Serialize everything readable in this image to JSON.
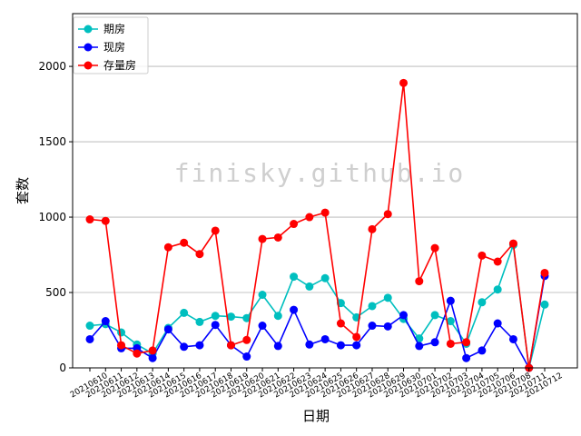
{
  "watermark": "finisky.github.io",
  "chart_data": {
    "type": "line",
    "title": "",
    "xlabel": "日期",
    "ylabel": "套数",
    "ylim": [
      0,
      2350
    ],
    "yticks": [
      0,
      500,
      1000,
      1500,
      2000
    ],
    "grid": "horizontal",
    "legend_position": "top-left",
    "categories": [
      "20210610",
      "20210611",
      "20210612",
      "20210613",
      "20210614",
      "20210615",
      "20210616",
      "20210617",
      "20210618",
      "20210619",
      "20210620",
      "20210621",
      "20210622",
      "20210623",
      "20210624",
      "20210625",
      "20210626",
      "20210627",
      "20210628",
      "20210629",
      "20210630",
      "20210701",
      "20210702",
      "20210703",
      "20210704",
      "20210705",
      "20210706",
      "20210708",
      "20210711",
      "20210712"
    ],
    "series": [
      {
        "name": "期房",
        "color": "#00bfbf",
        "values": [
          280,
          290,
          235,
          155,
          95,
          265,
          365,
          305,
          345,
          340,
          330,
          485,
          345,
          605,
          540,
          595,
          430,
          335,
          410,
          465,
          325,
          195,
          350,
          310,
          160,
          435,
          520,
          815,
          0,
          420
        ]
      },
      {
        "name": "现房",
        "color": "#0000ff",
        "values": [
          190,
          310,
          130,
          130,
          65,
          255,
          140,
          150,
          285,
          150,
          75,
          280,
          145,
          385,
          155,
          190,
          150,
          150,
          280,
          275,
          350,
          145,
          170,
          445,
          65,
          115,
          295,
          190,
          0,
          610
        ]
      },
      {
        "name": "存量房",
        "color": "#ff0000",
        "values": [
          985,
          975,
          150,
          95,
          115,
          800,
          830,
          755,
          910,
          150,
          185,
          855,
          865,
          955,
          1000,
          1030,
          295,
          205,
          920,
          1020,
          1890,
          575,
          795,
          160,
          170,
          745,
          705,
          825,
          0,
          630
        ]
      }
    ]
  }
}
